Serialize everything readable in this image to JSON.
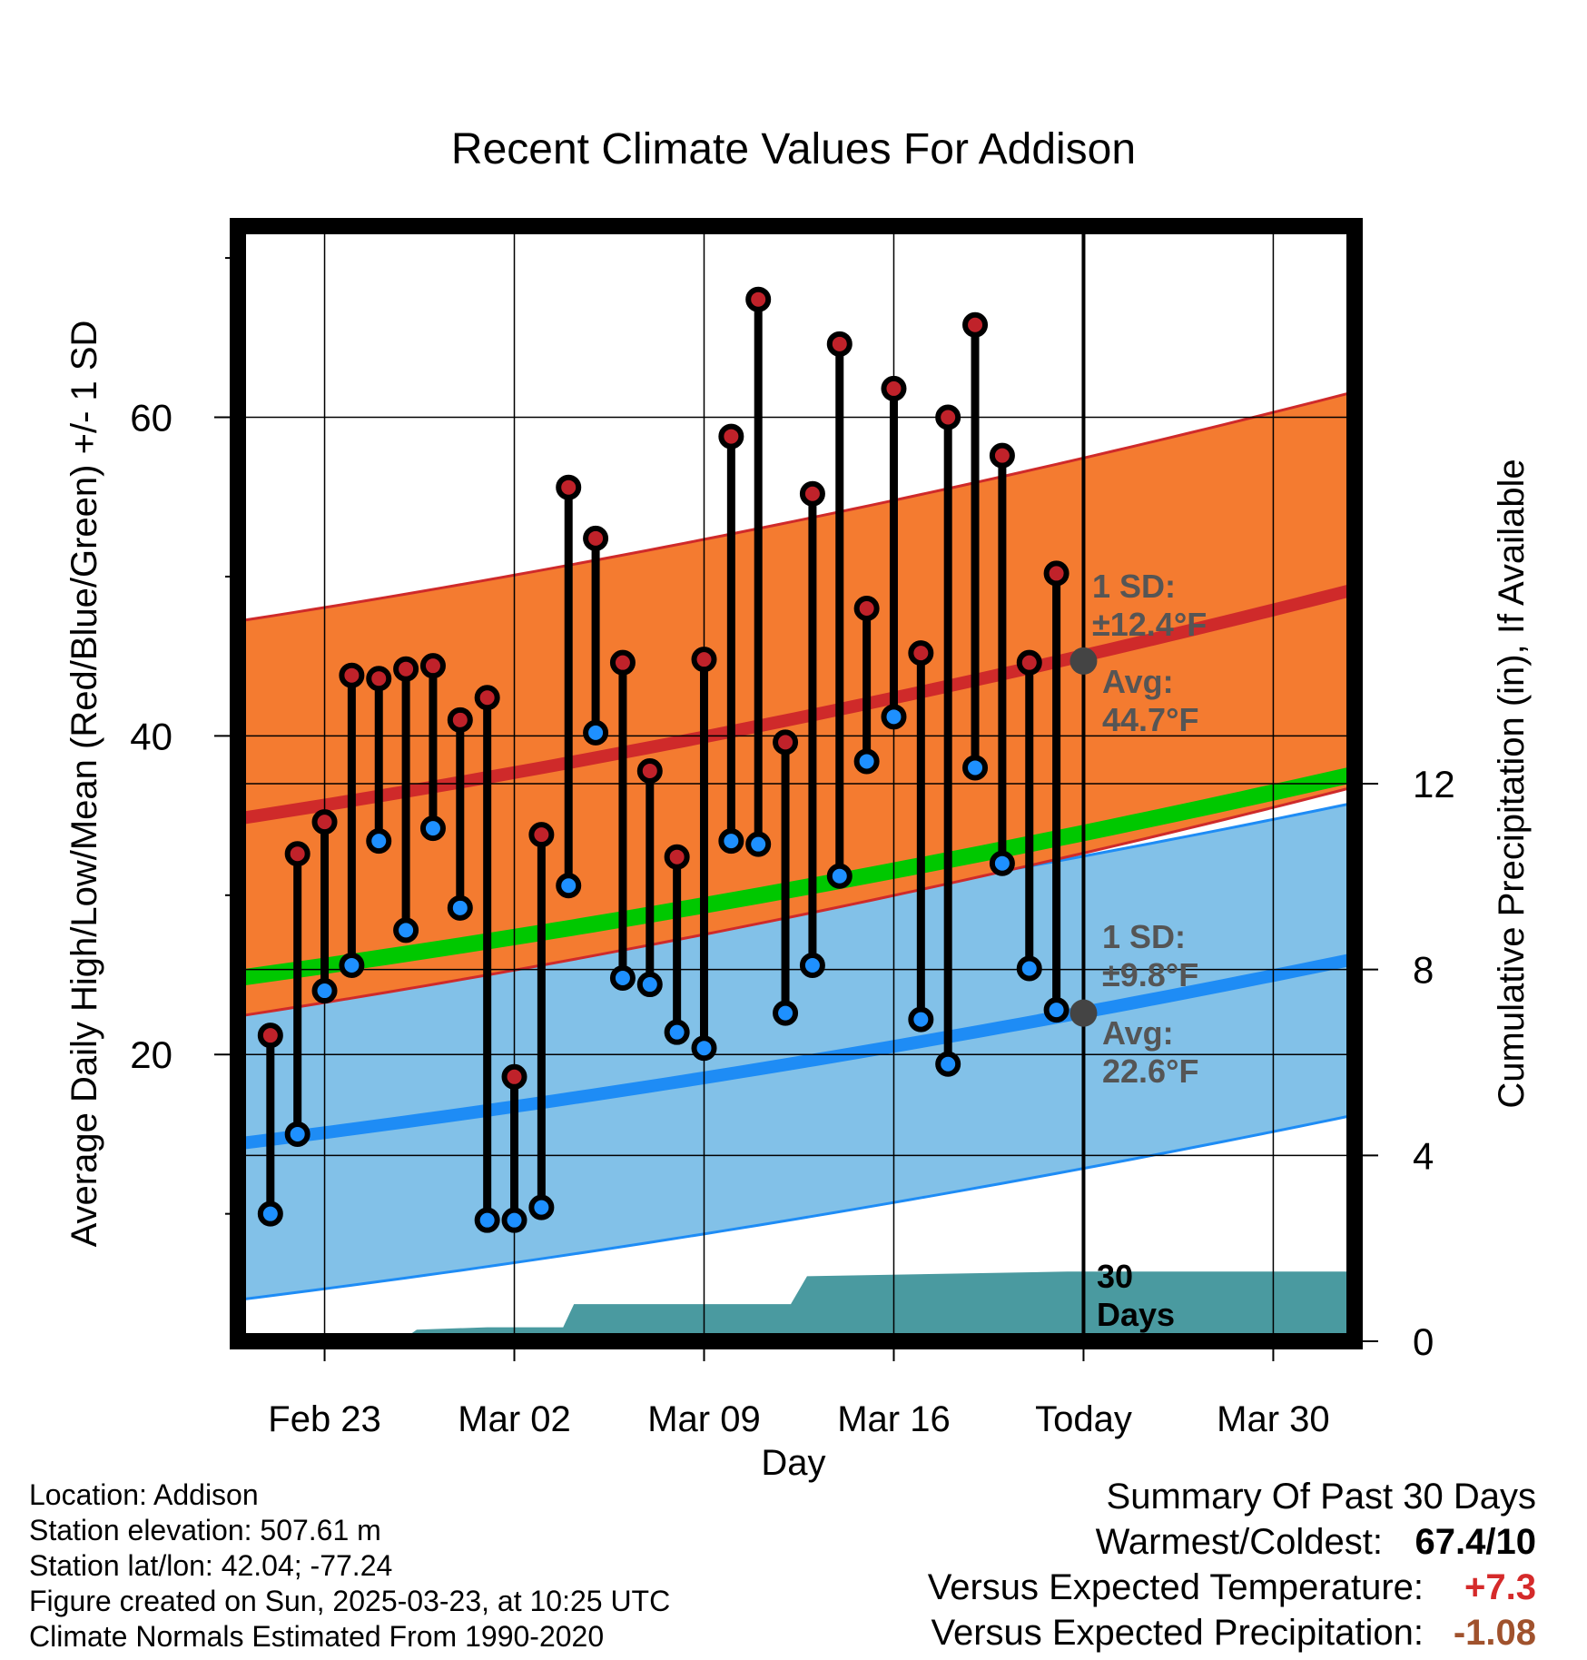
{
  "chart_data": {
    "type": "line",
    "title": "Recent Climate Values For Addison",
    "xlabel": "Day",
    "ylabel": "Average Daily High/Low/Mean (Red/Blue/Green) +/- 1 SD",
    "y2label": "Cumulative Precipitation (in), If Available",
    "ylim": [
      2,
      72
    ],
    "y2lim": [
      0,
      24
    ],
    "yticks": [
      20,
      40,
      60
    ],
    "y2ticks": [
      0,
      4,
      8,
      12
    ],
    "xlim_day": [
      -31.2,
      10
    ],
    "xticks": [
      {
        "day": -28,
        "label": "Feb 23"
      },
      {
        "day": -21,
        "label": "Mar 02"
      },
      {
        "day": -14,
        "label": "Mar 09"
      },
      {
        "day": -7,
        "label": "Mar 16"
      },
      {
        "day": 0,
        "label": "Today"
      },
      {
        "day": 7,
        "label": "Mar 30"
      }
    ],
    "grid": true,
    "days": [
      -30,
      -29,
      -28,
      -27,
      -26,
      -25,
      -24,
      -23,
      -22,
      -21,
      -20,
      -19,
      -18,
      -17,
      -16,
      -15,
      -14,
      -13,
      -12,
      -11,
      -10,
      -9,
      -8,
      -7,
      -6,
      -5,
      -4,
      -3,
      -2,
      -1
    ],
    "observed_high": [
      21.2,
      32.6,
      34.6,
      43.8,
      43.6,
      44.2,
      44.4,
      41,
      42.4,
      18.6,
      33.8,
      55.6,
      52.4,
      44.6,
      37.8,
      32.4,
      44.8,
      58.8,
      67.4,
      39.6,
      55.2,
      64.6,
      48,
      61.8,
      45.2,
      60,
      65.8,
      57.6,
      44.6,
      50.2
    ],
    "observed_low": [
      10,
      15,
      24,
      25.6,
      33.4,
      27.8,
      34.2,
      29.2,
      9.6,
      9.6,
      10.4,
      30.6,
      40.2,
      24.8,
      24.4,
      21.4,
      20.4,
      33.4,
      33.2,
      22.6,
      25.6,
      31.2,
      38.4,
      41.2,
      22.2,
      19.4,
      38,
      32,
      25.4,
      22.8
    ],
    "normal_high_mean": {
      "day_start": -31.2,
      "day_end": 10,
      "start": 34.8,
      "end": 49.2
    },
    "normal_high_sd": 12.4,
    "normal_low_mean": {
      "day_start": -31.2,
      "day_end": 10,
      "start": 14.4,
      "end": 26
    },
    "normal_low_sd": 9.8,
    "normal_mean": {
      "day_start": -31.2,
      "day_end": 10,
      "start": 24.8,
      "end": 37.6
    },
    "precip_cumulative": {
      "day": [
        -31.2,
        -25.2,
        -24.6,
        -22,
        -19.2,
        -18.8,
        -10.8,
        -10.2,
        -0.6,
        10
      ],
      "value": [
        0,
        0,
        0.25,
        0.3,
        0.3,
        0.8,
        0.8,
        1.4,
        1.5,
        1.5
      ]
    },
    "annotations": {
      "high_sd": [
        "1 SD:",
        "±12.4°F"
      ],
      "high_avg": [
        "Avg:",
        "44.7°F"
      ],
      "low_sd": [
        "1 SD:",
        "±9.8°F"
      ],
      "low_avg": [
        "Avg:",
        "22.6°F"
      ],
      "today_high_avg": 44.7,
      "today_low_avg": 22.6,
      "window": [
        "30",
        "Days"
      ]
    },
    "colors": {
      "high_band": "#f47b30",
      "high_line": "#cf2a2a",
      "low_band": "#82c1e8",
      "low_line": "#1e8cf5",
      "mean_line": "#00c800",
      "precip": "#4a9aa0",
      "high_dot": "#c0222a",
      "low_dot": "#1e90ff"
    }
  },
  "meta": {
    "location": "Location: Addison",
    "elevation": "Station elevation: 507.61 m",
    "latlon": "Station lat/lon: 42.04; -77.24",
    "created": "Figure created on Sun, 2025-03-23, at 10:25 UTC",
    "normals": "Climate Normals Estimated From 1990-2020"
  },
  "summary": {
    "title": "Summary Of Past 30 Days",
    "warmest_label": "Warmest/Coldest:",
    "warmest_value": "67.4/10",
    "temp_label": "Versus Expected Temperature:",
    "temp_value": "+7.3",
    "temp_color": "#d52a2a",
    "precip_label": "Versus Expected Precipitation:",
    "precip_value": "-1.08",
    "precip_color": "#a0522d"
  }
}
